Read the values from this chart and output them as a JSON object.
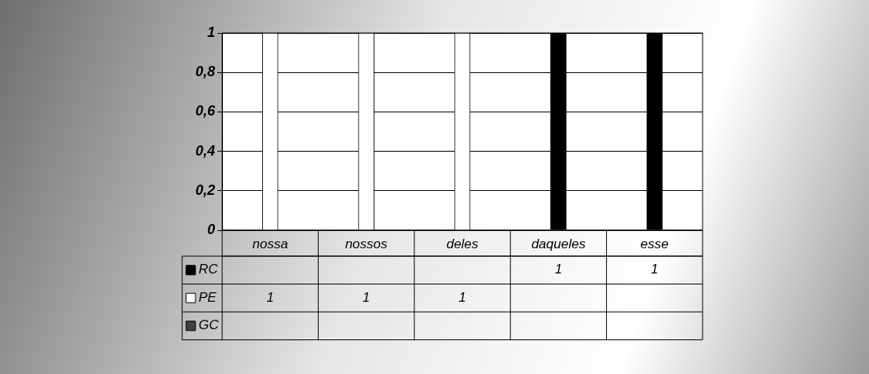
{
  "chart_data": {
    "type": "bar",
    "categories": [
      "nossa",
      "nossos",
      "deles",
      "daqueles",
      "esse"
    ],
    "series": [
      {
        "name": "RC",
        "color": "#000000",
        "values": [
          null,
          null,
          null,
          1,
          1
        ]
      },
      {
        "name": "PE",
        "color": "#ffffff",
        "values": [
          1,
          1,
          1,
          null,
          null
        ]
      },
      {
        "name": "GC",
        "color": "#404040",
        "values": [
          null,
          null,
          null,
          null,
          null
        ]
      }
    ],
    "ylim": [
      0,
      1
    ],
    "yticks": [
      0,
      {
        "value": 0.2,
        "label": "0,2"
      },
      {
        "value": 0.4,
        "label": "0,4"
      },
      {
        "value": 0.6,
        "label": "0,6"
      },
      {
        "value": 0.8,
        "label": "0,8"
      },
      1
    ],
    "grid": "y",
    "legend": "bottom left",
    "data_labels": true
  }
}
